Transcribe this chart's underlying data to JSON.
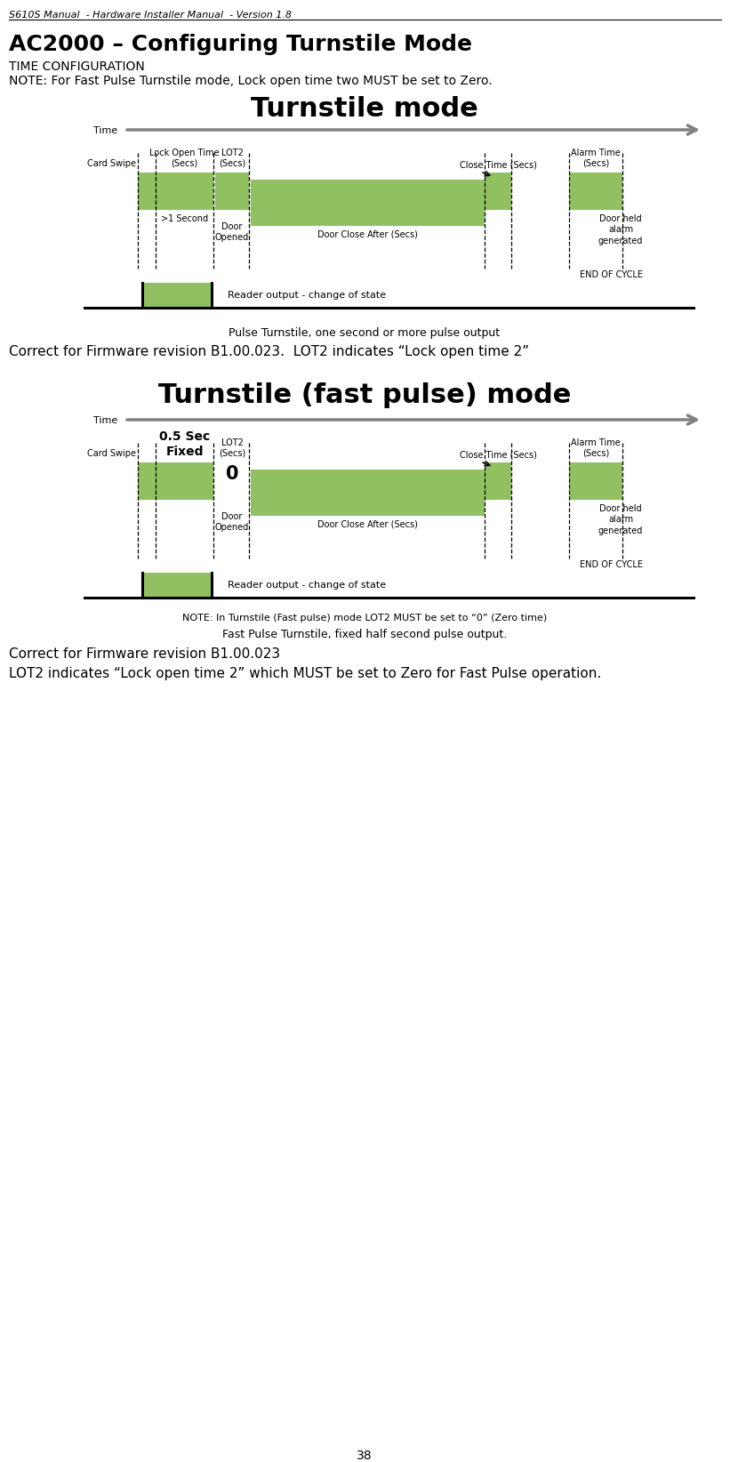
{
  "page_header": "S610S Manual  - Hardware Installer Manual  - Version 1.8",
  "section_title": "AC2000 – Configuring Turnstile Mode",
  "subtitle1": "TIME CONFIGURATION",
  "note_text": "NOTE: For Fast Pulse Turnstile mode, Lock open time two MUST be set to Zero.",
  "diagram1_title": "Turnstile mode",
  "diagram1_caption1": "Pulse Turnstile, one second or more pulse output",
  "diagram1_caption2": "Correct for Firmware revision B1.00.023.  LOT2 indicates “Lock open time 2”",
  "diagram2_title": "Turnstile (fast pulse) mode",
  "diagram2_note": "NOTE: In Turnstile (Fast pulse) mode LOT2 MUST be set to “0” (Zero time)",
  "diagram2_caption1": "Fast Pulse Turnstile, fixed half second pulse output.",
  "diagram2_caption2": "Correct for Firmware revision B1.00.023",
  "diagram2_caption3": "LOT2 indicates “Lock open time 2” which MUST be set to Zero for Fast Pulse operation.",
  "green_color": "#90C060",
  "bg_color": "#FFFFFF",
  "page_number": "38"
}
